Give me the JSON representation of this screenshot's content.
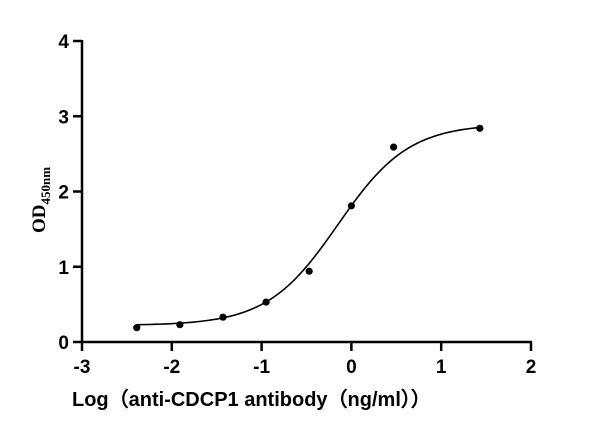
{
  "chart_data": {
    "type": "scatter",
    "title": "",
    "xlabel": "Log（anti-CDCP1 antibody（ng/ml））",
    "ylabel": "OD",
    "ylabel_subscript": "450nm",
    "xlim": [
      -3,
      2
    ],
    "ylim": [
      0,
      4
    ],
    "x_ticks": [
      -3,
      -2,
      -1,
      0,
      1,
      2
    ],
    "y_ticks": [
      0,
      1,
      2,
      3,
      4
    ],
    "grid": false,
    "legend": null,
    "series": [
      {
        "name": "anti-CDCP1 antibody",
        "x": [
          -2.39,
          -1.91,
          -1.43,
          -0.95,
          -0.47,
          0.0,
          0.47,
          1.43
        ],
        "y": [
          0.19,
          0.23,
          0.33,
          0.53,
          0.94,
          1.81,
          2.59,
          2.84
        ],
        "marker": "circle",
        "color": "#000000"
      }
    ],
    "fit": {
      "type": "four-parameter logistic",
      "bottom": 0.22,
      "top": 2.9,
      "log_ec50": -0.15,
      "hill_slope": 1.1,
      "x_range": [
        -2.39,
        1.43
      ],
      "color": "#000000"
    }
  }
}
